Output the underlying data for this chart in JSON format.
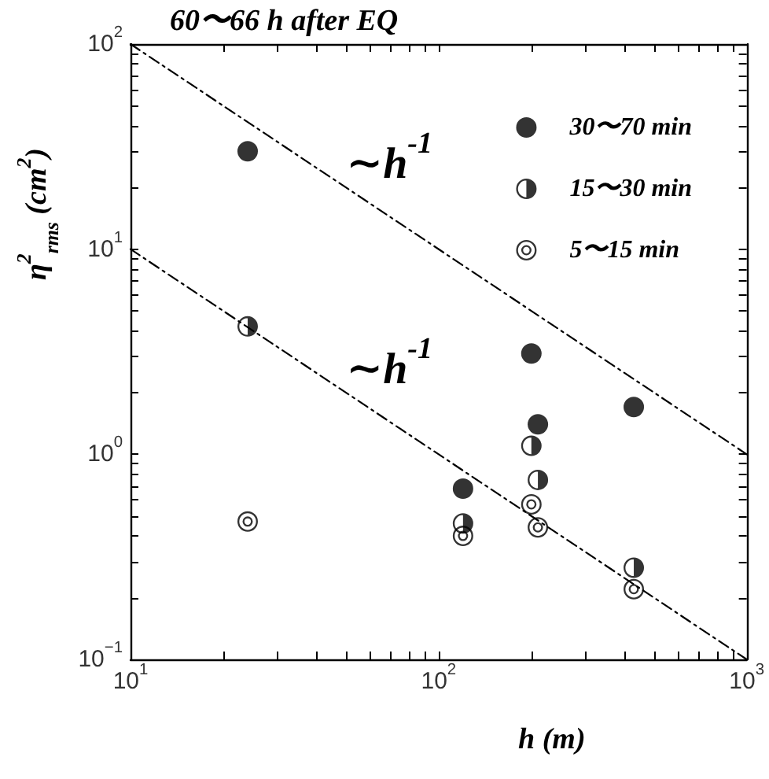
{
  "chart_data": {
    "type": "scatter",
    "title": "60〜66 h after EQ",
    "xlabel": "h (m)",
    "ylabel": "η$^{2}$$_{rms}$ (cm$^{2}$)",
    "log": "xy",
    "xlim": [
      10,
      1000
    ],
    "ylim": [
      0.1,
      100
    ],
    "xticks": [
      {
        "value": 10,
        "label": "10$^{1}$"
      },
      {
        "value": 20,
        "label": null
      },
      {
        "value": 30,
        "label": null
      },
      {
        "value": 40,
        "label": null
      },
      {
        "value": 50,
        "label": null
      },
      {
        "value": 60,
        "label": null
      },
      {
        "value": 70,
        "label": null
      },
      {
        "value": 80,
        "label": null
      },
      {
        "value": 90,
        "label": null
      },
      {
        "value": 100,
        "label": "10$^{2}$"
      },
      {
        "value": 200,
        "label": null
      },
      {
        "value": 300,
        "label": null
      },
      {
        "value": 400,
        "label": null
      },
      {
        "value": 500,
        "label": null
      },
      {
        "value": 600,
        "label": null
      },
      {
        "value": 700,
        "label": null
      },
      {
        "value": 800,
        "label": null
      },
      {
        "value": 900,
        "label": null
      },
      {
        "value": 1000,
        "label": "10$^{3}$"
      }
    ],
    "yticks": [
      {
        "value": 0.1,
        "label": "10$^{−1}$"
      },
      {
        "value": 0.2,
        "label": null
      },
      {
        "value": 0.3,
        "label": null
      },
      {
        "value": 0.4,
        "label": null
      },
      {
        "value": 0.5,
        "label": null
      },
      {
        "value": 0.6,
        "label": null
      },
      {
        "value": 0.7,
        "label": null
      },
      {
        "value": 0.8,
        "label": null
      },
      {
        "value": 0.9,
        "label": null
      },
      {
        "value": 1,
        "label": "10$^{0}$"
      },
      {
        "value": 2,
        "label": null
      },
      {
        "value": 3,
        "label": null
      },
      {
        "value": 4,
        "label": null
      },
      {
        "value": 5,
        "label": null
      },
      {
        "value": 6,
        "label": null
      },
      {
        "value": 7,
        "label": null
      },
      {
        "value": 8,
        "label": null
      },
      {
        "value": 9,
        "label": null
      },
      {
        "value": 10,
        "label": "10$^{1}$"
      },
      {
        "value": 20,
        "label": null
      },
      {
        "value": 30,
        "label": null
      },
      {
        "value": 40,
        "label": null
      },
      {
        "value": 50,
        "label": null
      },
      {
        "value": 60,
        "label": null
      },
      {
        "value": 70,
        "label": null
      },
      {
        "value": 80,
        "label": null
      },
      {
        "value": 90,
        "label": null
      },
      {
        "value": 100,
        "label": "10$^{2}$"
      }
    ],
    "marker": "circle",
    "legend": "top right",
    "series": [
      {
        "name": "30〜70 min",
        "color": "#000000",
        "x": [
          24,
          120,
          200,
          210,
          430
        ],
        "values": [
          30,
          0.68,
          3.1,
          1.4,
          1.7
        ]
      },
      {
        "name": "15〜30 min",
        "color": "#000000",
        "x": [
          24,
          120,
          200,
          210,
          430
        ],
        "values": [
          4.2,
          0.46,
          1.1,
          0.75,
          0.28
        ]
      },
      {
        "name": "5〜15 min",
        "color": "#000000",
        "x": [
          24,
          120,
          200,
          210,
          430
        ],
        "values": [
          0.47,
          0.4,
          0.57,
          0.44,
          0.22
        ]
      },
      {
        "type": "line",
        "name": "∼h$^{-1}$",
        "color": "#000000",
        "line_style": "dashed",
        "marker": "none",
        "x": [
          10,
          1000
        ],
        "values": [
          100,
          1
        ]
      },
      {
        "type": "line",
        "name": "∼h$^{-1}$",
        "color": "#000000",
        "line_style": "dashed",
        "marker": "none",
        "x": [
          10,
          1000
        ],
        "values": [
          10,
          0.1
        ]
      }
    ]
  }
}
